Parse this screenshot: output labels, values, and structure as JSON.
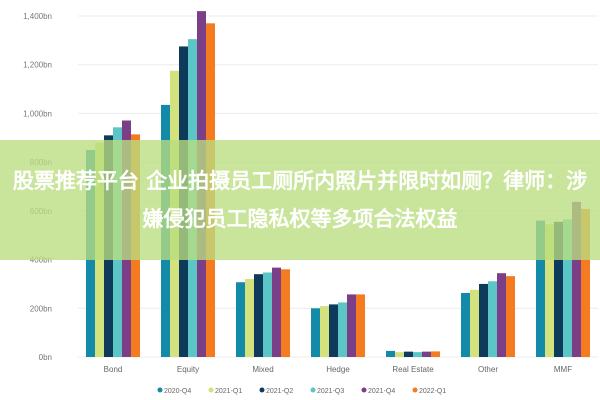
{
  "chart_data": {
    "type": "bar",
    "title": "",
    "xlabel": "",
    "ylabel": "",
    "ylim": [
      0,
      1400
    ],
    "yticks": [
      "0bn",
      "200bn",
      "400bn",
      "600bn",
      "800bn",
      "1,000bn",
      "1,200bn",
      "1,400bn"
    ],
    "grid": true,
    "legend_position": "bottom",
    "categories": [
      "Bond",
      "Equity",
      "Mixed",
      "Hedge",
      "Real Estate",
      "Other",
      "MMF"
    ],
    "series": [
      {
        "name": "2020-Q4",
        "color": "#128aa8",
        "values": [
          850,
          1035,
          307,
          200,
          25,
          263,
          560
        ]
      },
      {
        "name": "2021-Q1",
        "color": "#d3e27c",
        "values": [
          880,
          1175,
          320,
          209,
          20,
          276,
          545
        ]
      },
      {
        "name": "2021-Q2",
        "color": "#0e3a5c",
        "values": [
          910,
          1275,
          340,
          216,
          22,
          300,
          555
        ]
      },
      {
        "name": "2021-Q3",
        "color": "#5cc6c6",
        "values": [
          943,
          1305,
          347,
          224,
          20,
          311,
          565
        ]
      },
      {
        "name": "2021-Q4",
        "color": "#7a3f86",
        "values": [
          971,
          1420,
          367,
          257,
          22,
          344,
          637
        ]
      },
      {
        "name": "2022-Q1",
        "color": "#f47b20",
        "values": [
          914,
          1370,
          360,
          257,
          23,
          332,
          608
        ]
      }
    ]
  },
  "overlay": {
    "headline": "股票推荐平台 企业拍摄员工厕所内照片并限时如厕？律师：涉嫌侵犯员工隐私权等多项合法权益"
  }
}
